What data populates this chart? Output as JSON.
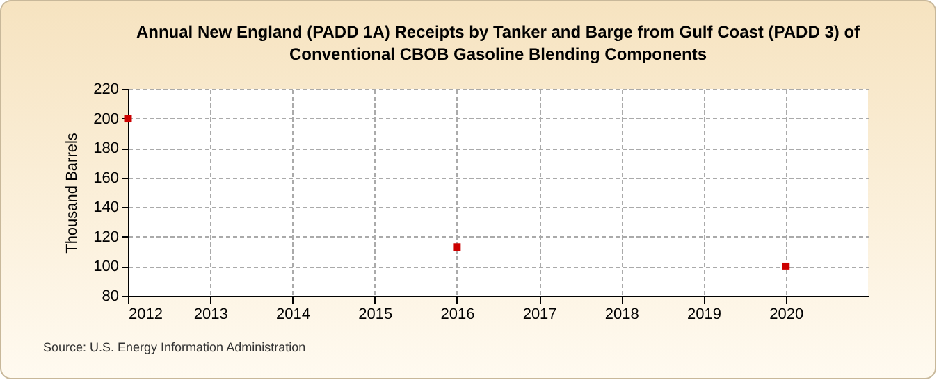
{
  "chart_data": {
    "type": "scatter",
    "title": "Annual New England (PADD 1A) Receipts by Tanker and Barge from Gulf Coast (PADD 3) of Conventional CBOB Gasoline Blending Components",
    "ylabel": "Thousand Barrels",
    "x": [
      2012,
      2016,
      2020
    ],
    "series": [
      {
        "color": "#cc0000",
        "values": [
          200,
          113,
          100
        ]
      }
    ],
    "xlim": [
      2012,
      2021
    ],
    "xticks": [
      2012,
      2013,
      2014,
      2015,
      2016,
      2017,
      2018,
      2019,
      2020
    ],
    "ylim": [
      80,
      220
    ],
    "yticks": [
      80,
      100,
      120,
      140,
      160,
      180,
      200,
      220
    ],
    "grid": true,
    "marker": "square",
    "annotations": [
      "Source: U.S. Energy Information Administration"
    ]
  }
}
